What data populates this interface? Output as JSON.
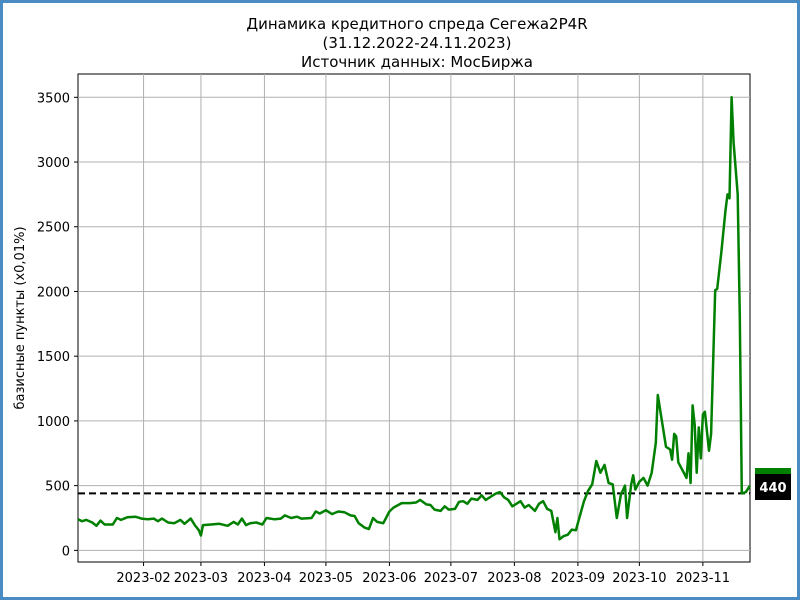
{
  "chart_data": {
    "type": "line",
    "title": "Динамика кредитного спреда Сегежа2P4R",
    "subtitle": "(31.12.2022-24.11.2023)",
    "source": "Источник данных: МосБиржа",
    "xlabel": "",
    "ylabel": "базисные пункты (x0,01%)",
    "x_range": [
      "2022-12-31",
      "2023-11-24"
    ],
    "ylim": [
      -90,
      3680
    ],
    "y_ticks": [
      0,
      500,
      1000,
      1500,
      2000,
      2500,
      3000,
      3500
    ],
    "x_ticks": [
      {
        "date": "2023-02-01",
        "label": "2023-02"
      },
      {
        "date": "2023-03-01",
        "label": "2023-03"
      },
      {
        "date": "2023-04-01",
        "label": "2023-04"
      },
      {
        "date": "2023-05-01",
        "label": "2023-05"
      },
      {
        "date": "2023-06-01",
        "label": "2023-06"
      },
      {
        "date": "2023-07-01",
        "label": "2023-07"
      },
      {
        "date": "2023-08-01",
        "label": "2023-08"
      },
      {
        "date": "2023-09-01",
        "label": "2023-09"
      },
      {
        "date": "2023-10-01",
        "label": "2023-10"
      },
      {
        "date": "2023-11-01",
        "label": "2023-11"
      }
    ],
    "grid": true,
    "line_color": "#008000",
    "reference_line": {
      "value": 440,
      "label": "440",
      "style": "dashed",
      "color": "#000000"
    },
    "series": [
      {
        "points": [
          [
            "2022-12-31",
            240
          ],
          [
            "2023-01-02",
            225
          ],
          [
            "2023-01-04",
            235
          ],
          [
            "2023-01-07",
            215
          ],
          [
            "2023-01-09",
            190
          ],
          [
            "2023-01-11",
            230
          ],
          [
            "2023-01-13",
            200
          ],
          [
            "2023-01-17",
            200
          ],
          [
            "2023-01-19",
            250
          ],
          [
            "2023-01-21",
            235
          ],
          [
            "2023-01-24",
            255
          ],
          [
            "2023-01-28",
            260
          ],
          [
            "2023-01-31",
            245
          ],
          [
            "2023-02-03",
            240
          ],
          [
            "2023-02-06",
            245
          ],
          [
            "2023-02-08",
            225
          ],
          [
            "2023-02-10",
            245
          ],
          [
            "2023-02-13",
            215
          ],
          [
            "2023-02-16",
            210
          ],
          [
            "2023-02-19",
            235
          ],
          [
            "2023-02-21",
            205
          ],
          [
            "2023-02-24",
            245
          ],
          [
            "2023-02-26",
            195
          ],
          [
            "2023-02-28",
            155
          ],
          [
            "2023-03-01",
            115
          ],
          [
            "2023-03-02",
            195
          ],
          [
            "2023-03-06",
            200
          ],
          [
            "2023-03-10",
            205
          ],
          [
            "2023-03-14",
            190
          ],
          [
            "2023-03-17",
            220
          ],
          [
            "2023-03-19",
            200
          ],
          [
            "2023-03-21",
            245
          ],
          [
            "2023-03-23",
            195
          ],
          [
            "2023-03-25",
            210
          ],
          [
            "2023-03-28",
            215
          ],
          [
            "2023-03-31",
            200
          ],
          [
            "2023-04-02",
            250
          ],
          [
            "2023-04-06",
            240
          ],
          [
            "2023-04-09",
            245
          ],
          [
            "2023-04-11",
            270
          ],
          [
            "2023-04-14",
            250
          ],
          [
            "2023-04-17",
            260
          ],
          [
            "2023-04-19",
            245
          ],
          [
            "2023-04-24",
            250
          ],
          [
            "2023-04-26",
            300
          ],
          [
            "2023-04-28",
            285
          ],
          [
            "2023-05-01",
            310
          ],
          [
            "2023-05-04",
            280
          ],
          [
            "2023-05-07",
            300
          ],
          [
            "2023-05-10",
            295
          ],
          [
            "2023-05-13",
            270
          ],
          [
            "2023-05-15",
            265
          ],
          [
            "2023-05-17",
            210
          ],
          [
            "2023-05-20",
            175
          ],
          [
            "2023-05-22",
            165
          ],
          [
            "2023-05-24",
            250
          ],
          [
            "2023-05-26",
            220
          ],
          [
            "2023-05-29",
            210
          ],
          [
            "2023-06-01",
            300
          ],
          [
            "2023-06-03",
            330
          ],
          [
            "2023-06-07",
            365
          ],
          [
            "2023-06-11",
            365
          ],
          [
            "2023-06-14",
            370
          ],
          [
            "2023-06-16",
            390
          ],
          [
            "2023-06-19",
            355
          ],
          [
            "2023-06-21",
            350
          ],
          [
            "2023-06-23",
            315
          ],
          [
            "2023-06-26",
            305
          ],
          [
            "2023-06-28",
            340
          ],
          [
            "2023-06-30",
            315
          ],
          [
            "2023-07-03",
            320
          ],
          [
            "2023-07-05",
            375
          ],
          [
            "2023-07-07",
            380
          ],
          [
            "2023-07-09",
            360
          ],
          [
            "2023-07-11",
            400
          ],
          [
            "2023-07-14",
            390
          ],
          [
            "2023-07-16",
            425
          ],
          [
            "2023-07-18",
            390
          ],
          [
            "2023-07-21",
            420
          ],
          [
            "2023-07-23",
            440
          ],
          [
            "2023-07-25",
            450
          ],
          [
            "2023-07-27",
            410
          ],
          [
            "2023-07-29",
            390
          ],
          [
            "2023-07-31",
            340
          ],
          [
            "2023-08-02",
            360
          ],
          [
            "2023-08-04",
            380
          ],
          [
            "2023-08-06",
            330
          ],
          [
            "2023-08-08",
            350
          ],
          [
            "2023-08-11",
            305
          ],
          [
            "2023-08-13",
            360
          ],
          [
            "2023-08-15",
            380
          ],
          [
            "2023-08-17",
            320
          ],
          [
            "2023-08-19",
            305
          ],
          [
            "2023-08-21",
            140
          ],
          [
            "2023-08-22",
            250
          ],
          [
            "2023-08-23",
            85
          ],
          [
            "2023-08-25",
            110
          ],
          [
            "2023-08-27",
            120
          ],
          [
            "2023-08-29",
            160
          ],
          [
            "2023-08-31",
            155
          ],
          [
            "2023-09-02",
            270
          ],
          [
            "2023-09-04",
            380
          ],
          [
            "2023-09-06",
            460
          ],
          [
            "2023-09-08",
            510
          ],
          [
            "2023-09-10",
            690
          ],
          [
            "2023-09-12",
            600
          ],
          [
            "2023-09-14",
            660
          ],
          [
            "2023-09-16",
            520
          ],
          [
            "2023-09-18",
            510
          ],
          [
            "2023-09-20",
            250
          ],
          [
            "2023-09-22",
            430
          ],
          [
            "2023-09-24",
            500
          ],
          [
            "2023-09-25",
            250
          ],
          [
            "2023-09-27",
            510
          ],
          [
            "2023-09-28",
            580
          ],
          [
            "2023-09-29",
            470
          ],
          [
            "2023-10-01",
            530
          ],
          [
            "2023-10-03",
            560
          ],
          [
            "2023-10-05",
            500
          ],
          [
            "2023-10-07",
            600
          ],
          [
            "2023-10-09",
            830
          ],
          [
            "2023-10-10",
            1200
          ],
          [
            "2023-10-12",
            1000
          ],
          [
            "2023-10-14",
            800
          ],
          [
            "2023-10-16",
            780
          ],
          [
            "2023-10-17",
            700
          ],
          [
            "2023-10-18",
            900
          ],
          [
            "2023-10-19",
            880
          ],
          [
            "2023-10-20",
            680
          ],
          [
            "2023-10-22",
            620
          ],
          [
            "2023-10-24",
            560
          ],
          [
            "2023-10-25",
            750
          ],
          [
            "2023-10-26",
            520
          ],
          [
            "2023-10-27",
            1120
          ],
          [
            "2023-10-28",
            970
          ],
          [
            "2023-10-29",
            600
          ],
          [
            "2023-10-30",
            950
          ],
          [
            "2023-10-31",
            710
          ],
          [
            "2023-11-01",
            1050
          ],
          [
            "2023-11-02",
            1070
          ],
          [
            "2023-11-04",
            770
          ],
          [
            "2023-11-05",
            900
          ],
          [
            "2023-11-07",
            2010
          ],
          [
            "2023-11-08",
            2020
          ],
          [
            "2023-11-10",
            2300
          ],
          [
            "2023-11-12",
            2620
          ],
          [
            "2023-11-13",
            2750
          ],
          [
            "2023-11-14",
            2720
          ],
          [
            "2023-11-15",
            3500
          ],
          [
            "2023-11-16",
            3150
          ],
          [
            "2023-11-18",
            2750
          ],
          [
            "2023-11-19",
            1800
          ],
          [
            "2023-11-20",
            440
          ],
          [
            "2023-11-22",
            450
          ],
          [
            "2023-11-24",
            500
          ]
        ]
      }
    ]
  }
}
